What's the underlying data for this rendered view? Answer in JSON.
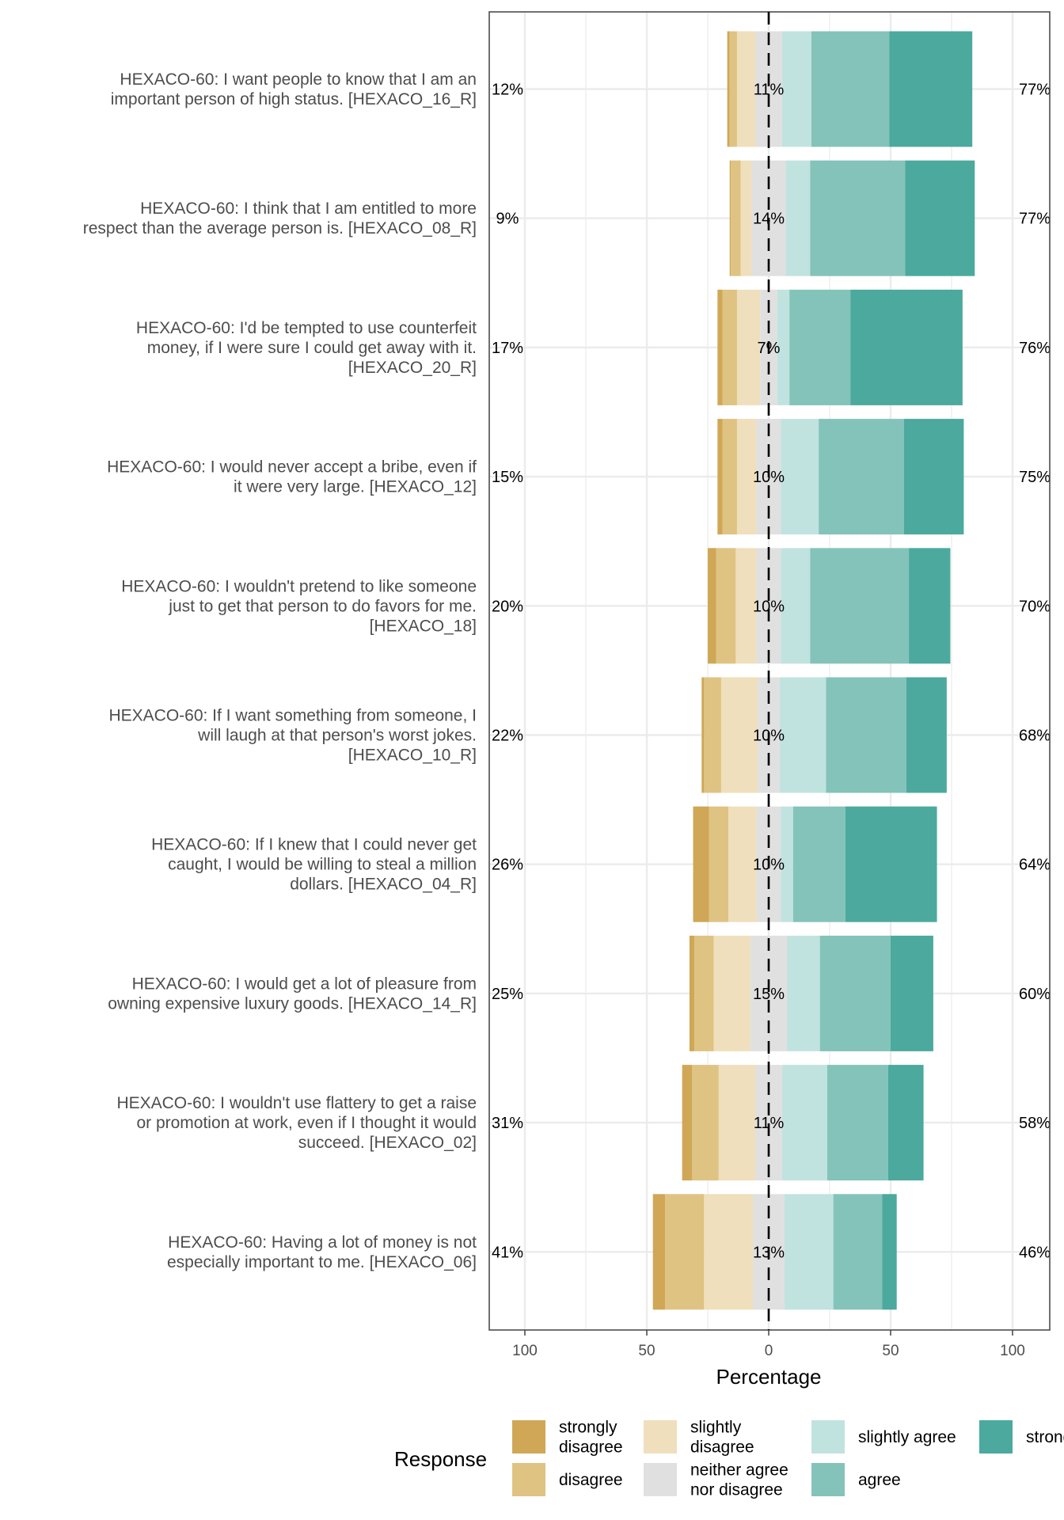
{
  "chart_data": {
    "type": "bar",
    "subtype": "diverging-stacked-likert",
    "xlabel": "Percentage",
    "xlim": [
      -100,
      100
    ],
    "x_ticks": [
      -100,
      -50,
      0,
      50,
      100
    ],
    "x_tick_labels": [
      "100",
      "50",
      "0",
      "50",
      "100"
    ],
    "legend_title": "Response",
    "legend_position": "bottom",
    "levels": [
      {
        "key": "sd",
        "label": "strongly disagree",
        "lines": [
          "strongly",
          "disagree"
        ],
        "color": "#CFA756"
      },
      {
        "key": "d",
        "label": "disagree",
        "lines": [
          "disagree"
        ],
        "color": "#DFC382"
      },
      {
        "key": "sld",
        "label": "slightly disagree",
        "lines": [
          "slightly",
          "disagree"
        ],
        "color": "#EFDFBC"
      },
      {
        "key": "n",
        "label": "neither agree nor disagree",
        "lines": [
          "neither agree",
          "nor disagree"
        ],
        "color": "#E0E0E0"
      },
      {
        "key": "sla",
        "label": "slightly agree",
        "lines": [
          "slightly agree"
        ],
        "color": "#C0E3DF"
      },
      {
        "key": "a",
        "label": "agree",
        "lines": [
          "agree"
        ],
        "color": "#84C3B9"
      },
      {
        "key": "sa",
        "label": "strongly agree",
        "lines": [
          "strongly agree"
        ],
        "color": "#4BA99D"
      }
    ],
    "items": [
      {
        "label_lines": [
          "HEXACO-60: I want people to know that I am an",
          "important person of high status. [HEXACO_16_R]"
        ],
        "low_label": "12%",
        "neutral_label": "11%",
        "high_label": "77%",
        "values": [
          1,
          3,
          7.5,
          11,
          12,
          32,
          34
        ]
      },
      {
        "label_lines": [
          "HEXACO-60: I think that I am entitled to more",
          "respect than the average person is. [HEXACO_08_R]"
        ],
        "low_label": "9%",
        "neutral_label": "14%",
        "high_label": "77%",
        "values": [
          0.5,
          4,
          4.5,
          14,
          10,
          39,
          28.5
        ]
      },
      {
        "label_lines": [
          "HEXACO-60: I'd be tempted to use counterfeit",
          "money, if I were sure I could get away with it.",
          "[HEXACO_20_R]"
        ],
        "low_label": "17%",
        "neutral_label": "7%",
        "high_label": "76%",
        "values": [
          2,
          6,
          9.5,
          7,
          5,
          25,
          46
        ]
      },
      {
        "label_lines": [
          "HEXACO-60: I would never accept a bribe, even if",
          "it were very large. [HEXACO_12]"
        ],
        "low_label": "15%",
        "neutral_label": "10%",
        "high_label": "75%",
        "values": [
          2,
          6,
          8,
          10,
          15.5,
          35,
          24.5
        ]
      },
      {
        "label_lines": [
          "HEXACO-60: I wouldn't pretend to like someone",
          "just to get that person to do favors for me.",
          "[HEXACO_18]"
        ],
        "low_label": "20%",
        "neutral_label": "10%",
        "high_label": "70%",
        "values": [
          3.5,
          8,
          8.5,
          10,
          12,
          40.5,
          17
        ]
      },
      {
        "label_lines": [
          "HEXACO-60: If I want something from someone, I",
          "will laugh at that person's worst jokes.",
          "[HEXACO_10_R]"
        ],
        "low_label": "22%",
        "neutral_label": "10%",
        "high_label": "68%",
        "values": [
          1,
          7,
          15,
          9,
          19,
          33,
          16.5
        ]
      },
      {
        "label_lines": [
          "HEXACO-60: If I knew that I could never get",
          "caught, I would be willing to steal a million",
          "dollars. [HEXACO_04_R]"
        ],
        "low_label": "26%",
        "neutral_label": "10%",
        "high_label": "64%",
        "values": [
          6.5,
          8,
          11.5,
          10,
          5,
          21.5,
          37.5
        ]
      },
      {
        "label_lines": [
          "HEXACO-60: I would get a lot of pleasure from",
          "owning expensive luxury goods. [HEXACO_14_R]"
        ],
        "low_label": "25%",
        "neutral_label": "15%",
        "high_label": "60%",
        "values": [
          2,
          8,
          15,
          15,
          13.5,
          29,
          17.5
        ]
      },
      {
        "label_lines": [
          "HEXACO-60: I wouldn't use flattery to get a raise",
          "or promotion at work, even if I thought it would",
          "succeed. [HEXACO_02]"
        ],
        "low_label": "31%",
        "neutral_label": "11%",
        "high_label": "58%",
        "values": [
          4,
          11,
          15,
          11,
          18.5,
          25,
          14.5
        ]
      },
      {
        "label_lines": [
          "HEXACO-60: Having a lot of money is not",
          "especially important to me. [HEXACO_06]"
        ],
        "low_label": "41%",
        "neutral_label": "13%",
        "high_label": "46%",
        "values": [
          5,
          16,
          20,
          13,
          20,
          20,
          6
        ]
      }
    ]
  }
}
